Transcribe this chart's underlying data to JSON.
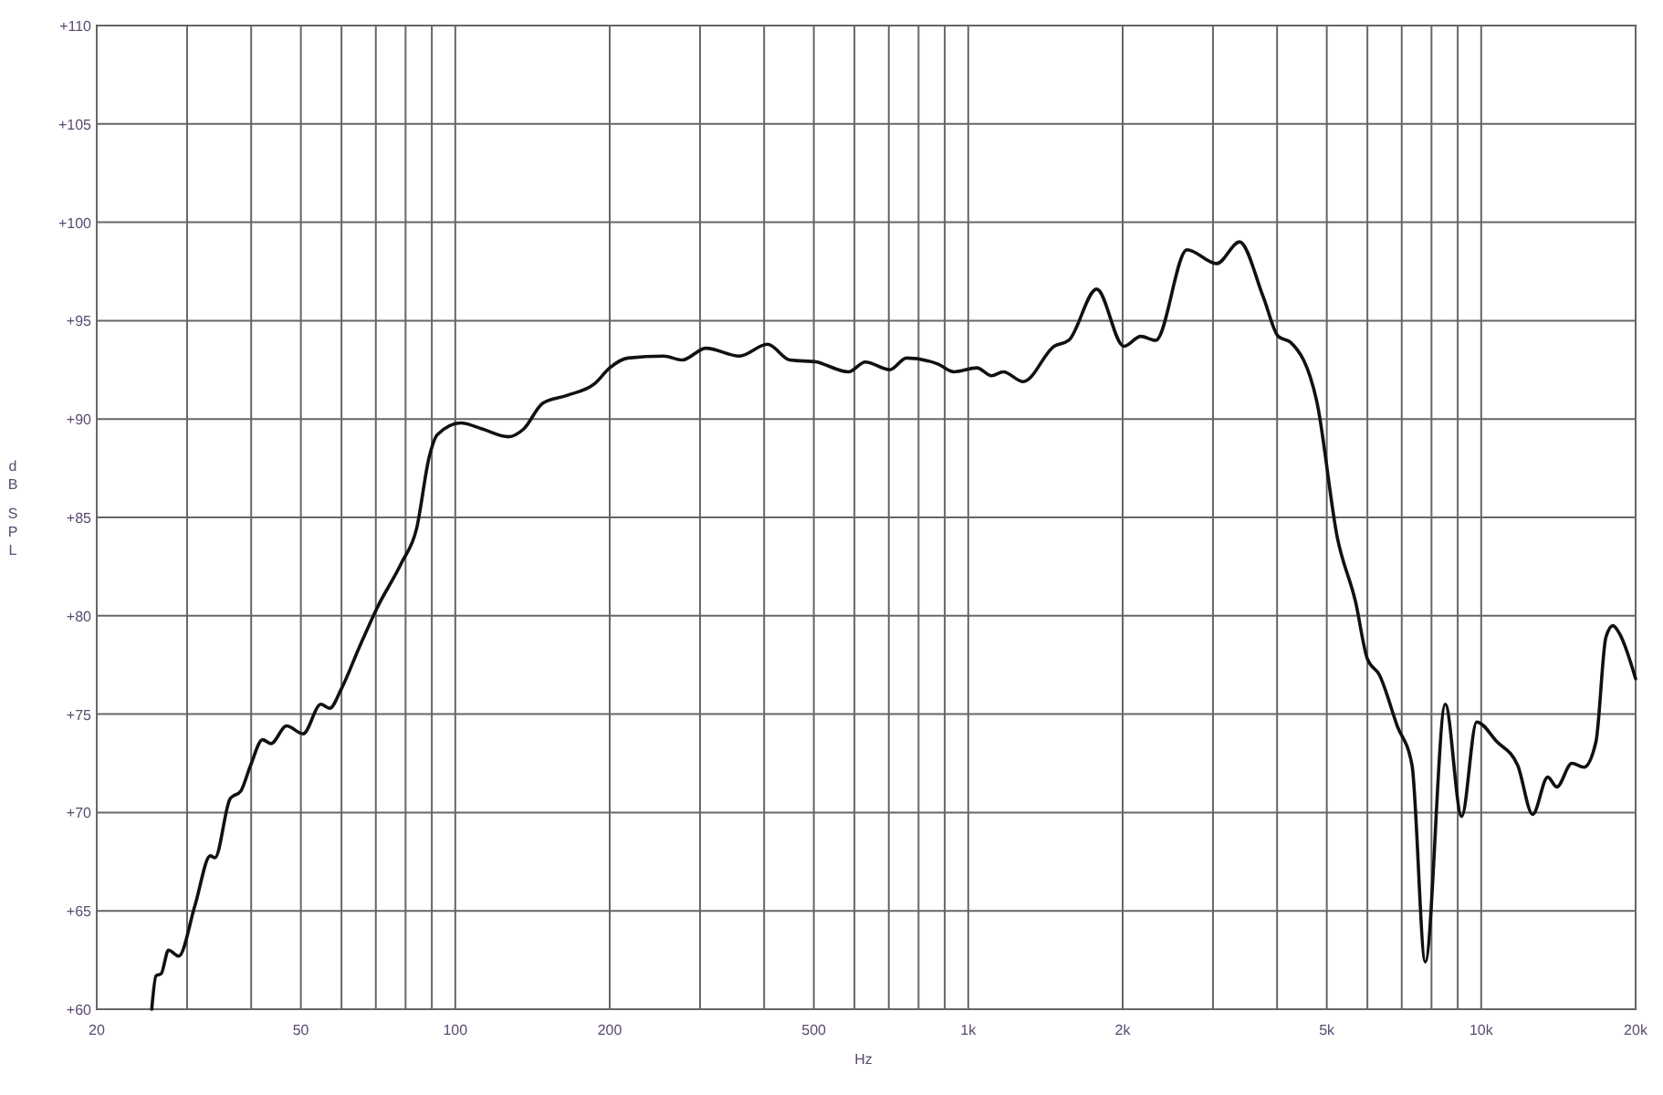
{
  "chart_data": {
    "type": "line",
    "xlabel": "Hz",
    "ylabel": "dB SPL",
    "log": "x",
    "grid": true,
    "marker": "none",
    "line_style": "solid",
    "xlim": [
      20,
      20000
    ],
    "ylim": [
      60,
      110
    ],
    "xticks": [
      20,
      {
        "value": 30,
        "label": null
      },
      {
        "value": 40,
        "label": null
      },
      50,
      {
        "value": 60,
        "label": null
      },
      {
        "value": 70,
        "label": null
      },
      {
        "value": 80,
        "label": null
      },
      {
        "value": 90,
        "label": null
      },
      100,
      200,
      {
        "value": 300,
        "label": null
      },
      {
        "value": 400,
        "label": null
      },
      500,
      {
        "value": 600,
        "label": null
      },
      {
        "value": 700,
        "label": null
      },
      {
        "value": 800,
        "label": null
      },
      {
        "value": 900,
        "label": null
      },
      {
        "value": 1000,
        "label": "1k"
      },
      {
        "value": 2000,
        "label": "2k"
      },
      {
        "value": 3000,
        "label": null
      },
      {
        "value": 4000,
        "label": null
      },
      {
        "value": 5000,
        "label": "5k"
      },
      {
        "value": 6000,
        "label": null
      },
      {
        "value": 7000,
        "label": null
      },
      {
        "value": 8000,
        "label": null
      },
      {
        "value": 9000,
        "label": null
      },
      {
        "value": 10000,
        "label": "10k"
      },
      {
        "value": 20000,
        "label": "20k"
      }
    ],
    "yticks": [
      {
        "value": 60,
        "label": "+60"
      },
      {
        "value": 65,
        "label": "+65"
      },
      {
        "value": 70,
        "label": "+70"
      },
      {
        "value": 75,
        "label": "+75"
      },
      {
        "value": 80,
        "label": "+80"
      },
      {
        "value": 85,
        "label": "+85"
      },
      {
        "value": 90,
        "label": "+90"
      },
      {
        "value": 95,
        "label": "+95"
      },
      {
        "value": 100,
        "label": "+100"
      },
      {
        "value": 105,
        "label": "+105"
      },
      {
        "value": 110,
        "label": "+110"
      }
    ],
    "series": [
      {
        "color": "#111111",
        "x": [
          25.6,
          26.1,
          26.7,
          27.6,
          28.9,
          31.1,
          33.3,
          34,
          36.4,
          38.2,
          39.9,
          42.1,
          43.7,
          46.9,
          50.5,
          54.7,
          56.9,
          60,
          65,
          70.4,
          78.6,
          84,
          89,
          92.2,
          102.6,
          112.7,
          127,
          136,
          148,
          165,
          187,
          200,
          217,
          255,
          277,
          308,
          358,
          406,
          449,
          508,
          521,
          584,
          630,
          703,
          758,
          872,
          937,
          1040,
          1110,
          1170,
          1280,
          1470,
          1570,
          1780,
          2010,
          2170,
          2320,
          2670,
          3050,
          3380,
          3760,
          4020,
          4250,
          4780,
          5240,
          5690,
          6000,
          6330,
          6860,
          7330,
          7780,
          8510,
          9160,
          9800,
          10730,
          11780,
          12600,
          13480,
          14040,
          15020,
          15860,
          16740,
          17500,
          18060,
          18600,
          20000
        ],
        "values": [
          60,
          61.7,
          61.8,
          63,
          62.7,
          65.3,
          67.8,
          67.7,
          70.7,
          71.1,
          72.4,
          73.7,
          73.5,
          74.4,
          74,
          75.5,
          75.3,
          76.3,
          78.4,
          80.4,
          82.7,
          84.4,
          88.1,
          89.2,
          89.8,
          89.5,
          89.1,
          89.5,
          90.8,
          91.2,
          91.8,
          92.6,
          93.1,
          93.2,
          93,
          93.6,
          93.2,
          93.8,
          93,
          92.9,
          92.8,
          92.4,
          92.9,
          92.5,
          93.1,
          92.8,
          92.4,
          92.6,
          92.2,
          92.4,
          91.9,
          93.7,
          94,
          96.6,
          93.7,
          94.2,
          94,
          98.6,
          97.9,
          99,
          96.2,
          94.2,
          93.9,
          90.9,
          84,
          80.7,
          77.8,
          77,
          74.4,
          72.4,
          62.4,
          75.5,
          69.8,
          74.6,
          73.6,
          72.4,
          69.9,
          71.8,
          71.3,
          72.5,
          72.3,
          73.6,
          78.9,
          79.5,
          79.1,
          76.8
        ]
      }
    ]
  }
}
